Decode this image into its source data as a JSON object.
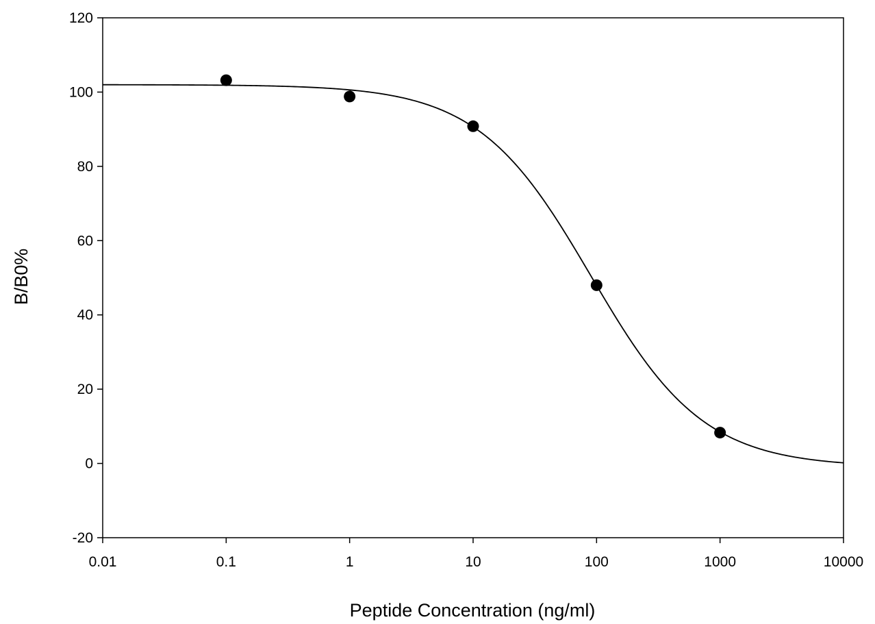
{
  "chart_data": {
    "type": "scatter",
    "xlabel": "Peptide Concentration (ng/ml)",
    "ylabel": "B/B0%",
    "x_scale": "log",
    "xlim": [
      0.01,
      10000
    ],
    "ylim": [
      -20,
      120
    ],
    "x_ticks": [
      0.01,
      0.1,
      1,
      10,
      100,
      1000,
      10000
    ],
    "x_tick_labels": [
      "0.01",
      "0.1",
      "1",
      "10",
      "100",
      "1000",
      "10000"
    ],
    "y_ticks": [
      -20,
      0,
      20,
      40,
      60,
      80,
      100,
      120
    ],
    "y_tick_labels": [
      "-20",
      "0",
      "20",
      "40",
      "60",
      "80",
      "100",
      "120"
    ],
    "grid": false,
    "points": {
      "x": [
        0.1,
        1,
        10,
        100,
        1000
      ],
      "y": [
        103.2,
        98.8,
        90.8,
        48.0,
        8.3
      ]
    },
    "fit_curve": {
      "model": "four-parameter logistic",
      "top": 102,
      "bottom": -1,
      "ec50": 90,
      "hill": 0.95
    },
    "colors": {
      "marker": "#000000",
      "line": "#000000",
      "axis": "#000000"
    }
  }
}
